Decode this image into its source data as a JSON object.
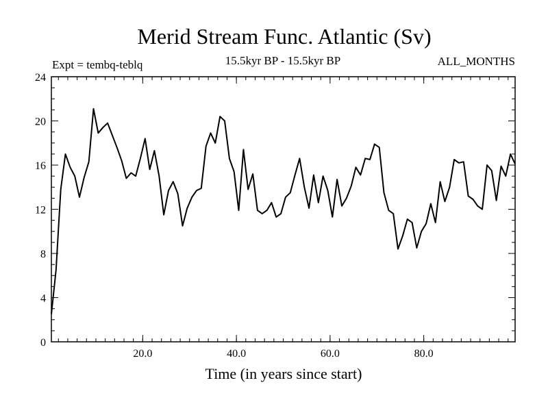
{
  "chart_data": {
    "type": "line",
    "title": "Merid Stream Func. Atlantic (Sv)",
    "subtitle_left": "Expt = tembq-teblq",
    "subtitle_center": "15.5kyr BP - 15.5kyr BP",
    "subtitle_right": "ALL_MONTHS",
    "xlabel": "Time (in years since start)",
    "ylabel": "",
    "xlim": [
      0.5,
      99.5
    ],
    "ylim": [
      0,
      24
    ],
    "x_ticks": [
      20,
      40,
      60,
      80
    ],
    "x_tick_labels": [
      "20.0",
      "40.0",
      "60.0",
      "80.0"
    ],
    "x_minor_step": 2,
    "y_ticks": [
      0,
      4,
      8,
      12,
      16,
      20,
      24
    ],
    "y_tick_labels": [
      "0",
      "4",
      "8",
      "12",
      "16",
      "20",
      "24"
    ],
    "y_minor_step": 1,
    "grid": false,
    "series": [
      {
        "name": "Merid Stream Func. Atlantic",
        "x": [
          0.5,
          1.5,
          2.5,
          3.5,
          4.5,
          5.5,
          6.5,
          7.5,
          8.5,
          9.5,
          10.5,
          11.5,
          12.5,
          13.5,
          14.5,
          15.5,
          16.5,
          17.5,
          18.5,
          19.5,
          20.5,
          21.5,
          22.5,
          23.5,
          24.5,
          25.5,
          26.5,
          27.5,
          28.5,
          29.5,
          30.5,
          31.5,
          32.5,
          33.5,
          34.5,
          35.5,
          36.5,
          37.5,
          38.5,
          39.5,
          40.5,
          41.5,
          42.5,
          43.5,
          44.5,
          45.5,
          46.5,
          47.5,
          48.5,
          49.5,
          50.5,
          51.5,
          52.5,
          53.5,
          54.5,
          55.5,
          56.5,
          57.5,
          58.5,
          59.5,
          60.5,
          61.5,
          62.5,
          63.5,
          64.5,
          65.5,
          66.5,
          67.5,
          68.5,
          69.5,
          70.5,
          71.5,
          72.5,
          73.5,
          74.5,
          75.5,
          76.5,
          77.5,
          78.5,
          79.5,
          80.5,
          81.5,
          82.5,
          83.5,
          84.5,
          85.5,
          86.5,
          87.5,
          88.5,
          89.5,
          90.5,
          91.5,
          92.5,
          93.5,
          94.5,
          95.5,
          96.5,
          97.5,
          98.5,
          99.5
        ],
        "values": [
          2.5,
          6.5,
          13.8,
          17.0,
          15.8,
          15.0,
          13.1,
          14.9,
          16.3,
          21.1,
          18.9,
          19.4,
          19.8,
          18.7,
          17.6,
          16.4,
          14.8,
          15.3,
          15.0,
          16.6,
          18.4,
          15.6,
          17.3,
          15.0,
          11.5,
          13.7,
          14.5,
          13.4,
          10.5,
          12.1,
          13.1,
          13.7,
          13.9,
          17.7,
          18.9,
          18.0,
          20.4,
          20.0,
          16.6,
          15.4,
          11.9,
          17.4,
          13.8,
          15.2,
          11.9,
          11.6,
          11.9,
          12.6,
          11.3,
          11.6,
          13.1,
          13.5,
          15.1,
          16.6,
          14.0,
          12.1,
          15.1,
          12.6,
          15.0,
          13.7,
          11.3,
          14.7,
          12.3,
          13.0,
          14.1,
          15.8,
          15.1,
          16.6,
          16.5,
          17.9,
          17.6,
          13.5,
          11.9,
          11.6,
          8.4,
          9.6,
          11.1,
          10.8,
          8.5,
          10.0,
          10.7,
          12.5,
          10.8,
          14.5,
          12.7,
          14.0,
          16.5,
          16.2,
          16.3,
          13.2,
          12.9,
          12.3,
          12.0,
          16.0,
          15.5,
          12.8,
          15.9,
          15.0,
          17.0,
          16.1
        ]
      }
    ]
  }
}
